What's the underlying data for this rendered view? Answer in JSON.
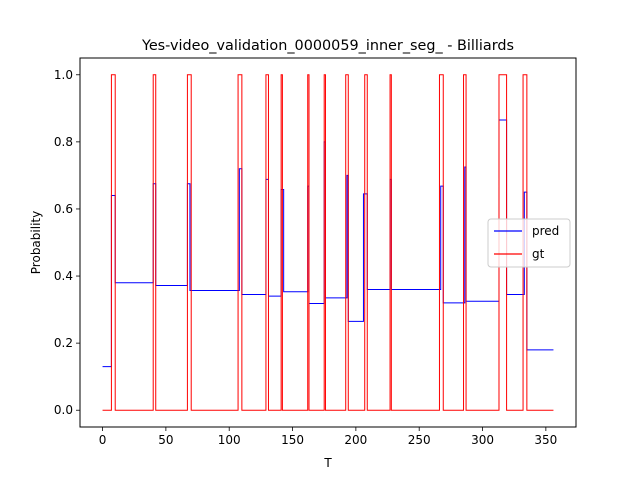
{
  "chart_data": {
    "type": "line",
    "title": "Yes-video_validation_0000059_inner_seg_ - Billiards",
    "xlabel": "T",
    "ylabel": "Probability",
    "xlim": [
      -17.8,
      373.8
    ],
    "ylim": [
      -0.05,
      1.05
    ],
    "xticks": [
      0,
      50,
      100,
      150,
      200,
      250,
      300,
      350
    ],
    "yticks": [
      0.0,
      0.2,
      0.4,
      0.6,
      0.8,
      1.0
    ],
    "xtick_labels": [
      "0",
      "50",
      "100",
      "150",
      "200",
      "250",
      "300",
      "350"
    ],
    "ytick_labels": [
      "0.0",
      "0.2",
      "0.4",
      "0.6",
      "0.8",
      "1.0"
    ],
    "grid": false,
    "legend": {
      "placement": "center-right",
      "entries": [
        "pred",
        "gt"
      ]
    },
    "series": [
      {
        "name": "pred",
        "color": "#0000ff",
        "step": "post",
        "x": [
          0,
          7,
          10,
          40,
          42,
          67,
          69,
          108,
          110,
          129,
          131,
          141,
          143,
          162,
          163,
          175,
          176,
          193,
          194,
          204,
          206,
          209,
          211,
          227,
          228,
          267,
          269,
          286,
          287,
          313,
          319,
          333,
          335,
          356
        ],
        "values": [
          0.13,
          0.64,
          0.38,
          0.675,
          0.372,
          0.675,
          0.357,
          0.72,
          0.345,
          0.688,
          0.34,
          0.658,
          0.353,
          0.668,
          0.318,
          0.8,
          0.335,
          0.7,
          0.265,
          0.265,
          0.645,
          0.36,
          0.36,
          0.688,
          0.36,
          0.668,
          0.32,
          0.725,
          0.325,
          0.865,
          0.345,
          0.65,
          0.18,
          0.18
        ]
      },
      {
        "name": "gt",
        "color": "#ff0000",
        "step": "post",
        "x": [
          0,
          7,
          10,
          40,
          42,
          67,
          70,
          107,
          110,
          129,
          131,
          141,
          142,
          162,
          163,
          175,
          176,
          192,
          194,
          207,
          209,
          227,
          228,
          266,
          269,
          285,
          287,
          313,
          319,
          332,
          335,
          356
        ],
        "values": [
          0,
          1,
          0,
          1,
          0,
          1,
          0,
          1,
          0,
          1,
          0,
          1,
          0,
          1,
          0,
          1,
          0,
          1,
          0,
          1,
          0,
          1,
          0,
          1,
          0,
          1,
          0,
          1,
          0,
          1,
          0,
          0
        ]
      }
    ]
  }
}
